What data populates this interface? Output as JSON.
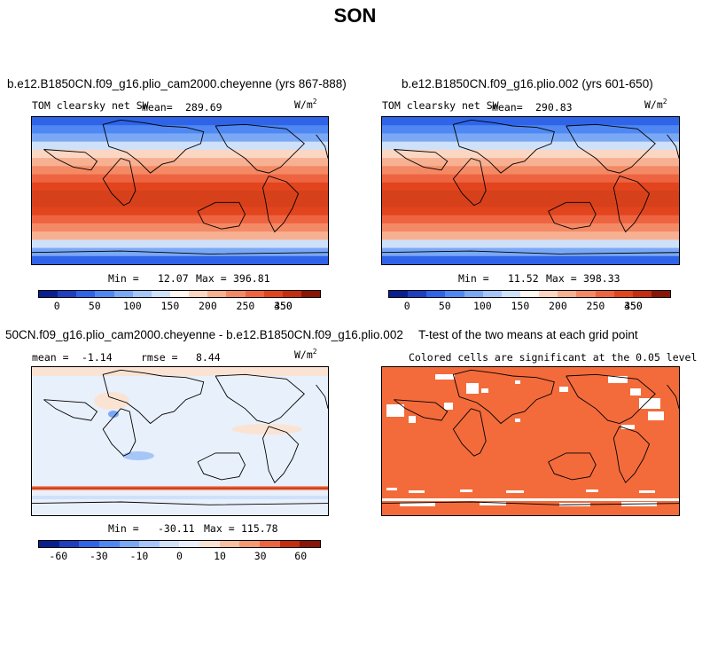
{
  "figure_title": "SON",
  "chart_data": [
    {
      "type": "heatmap",
      "title": "b.e12.B1850CN.f09_g16.plio_cam2000.cheyenne (yrs 867-888)",
      "variable_label": "TOM clearsky net SW",
      "mean_label": "mean=",
      "mean": "289.69",
      "unit_base": "W/m",
      "unit_exp": "2",
      "min_label": "Min =",
      "min": "12.07",
      "max_label": "Max =",
      "max": "396.81",
      "colorbar_ticks": [
        "0",
        "50",
        "100",
        "150",
        "200",
        "250",
        "350",
        "450"
      ],
      "colorbar_colors": [
        "#0a1f8f",
        "#1e3fbf",
        "#2f64e8",
        "#4f88f2",
        "#7aa8f5",
        "#a6c6f7",
        "#cfe0f9",
        "#fff8f0",
        "#fbd6c2",
        "#f7b091",
        "#f38a65",
        "#ee6440",
        "#e2441e",
        "#c42d10",
        "#8a1405"
      ],
      "zonal_bands": [
        "#2f64e8",
        "#4f88f2",
        "#7aa8f5",
        "#cfe0f9",
        "#fbd6c2",
        "#f7b091",
        "#f38a65",
        "#ee6440",
        "#e2441e",
        "#d6401b",
        "#d6401b",
        "#e2441e",
        "#ee6440",
        "#f38a65",
        "#f7b091",
        "#cfe0f9",
        "#7aa8f5",
        "#2f64e8"
      ]
    },
    {
      "type": "heatmap",
      "title": "b.e12.B1850CN.f09_g16.plio.002 (yrs 601-650)",
      "variable_label": "TOM clearsky net SW",
      "mean_label": "mean=",
      "mean": "290.83",
      "unit_base": "W/m",
      "unit_exp": "2",
      "min_label": "Min =",
      "min": "11.52",
      "max_label": "Max =",
      "max": "398.33",
      "colorbar_ticks": [
        "0",
        "50",
        "100",
        "150",
        "200",
        "250",
        "350",
        "450"
      ],
      "colorbar_colors": [
        "#0a1f8f",
        "#1e3fbf",
        "#2f64e8",
        "#4f88f2",
        "#7aa8f5",
        "#a6c6f7",
        "#cfe0f9",
        "#fff8f0",
        "#fbd6c2",
        "#f7b091",
        "#f38a65",
        "#ee6440",
        "#e2441e",
        "#c42d10",
        "#8a1405"
      ],
      "zonal_bands": [
        "#2f64e8",
        "#4f88f2",
        "#7aa8f5",
        "#cfe0f9",
        "#fbd6c2",
        "#f7b091",
        "#f38a65",
        "#ee6440",
        "#e2441e",
        "#d6401b",
        "#d6401b",
        "#e2441e",
        "#ee6440",
        "#f38a65",
        "#f7b091",
        "#cfe0f9",
        "#7aa8f5",
        "#2f64e8"
      ]
    },
    {
      "type": "heatmap",
      "title": "50CN.f09_g16.plio_cam2000.cheyenne - b.e12.B1850CN.f09_g16.plio.002",
      "mean_label": "mean =",
      "mean": "-1.14",
      "rmse_label": "rmse =",
      "rmse": "8.44",
      "unit_base": "W/m",
      "unit_exp": "2",
      "min_label": "Min =",
      "min": "-30.11",
      "max_label": "Max =",
      "max": "115.78",
      "colorbar_ticks": [
        "-60",
        "-30",
        "-10",
        "0",
        "10",
        "30",
        "60"
      ],
      "colorbar_colors": [
        "#0a1f8f",
        "#1e3fbf",
        "#2f64e8",
        "#4f88f2",
        "#7aa8f5",
        "#a6c6f7",
        "#cfe0f9",
        "#e8f0fb",
        "#fbe3d4",
        "#f7c0a3",
        "#f39a74",
        "#ee6440",
        "#c42d10",
        "#8a1405"
      ]
    },
    {
      "type": "heatmap",
      "title": "T-test of the two means at each grid point",
      "subtitle": "Colored cells are significant at the 0.05 level",
      "fill_color": "#f36b3b"
    }
  ]
}
